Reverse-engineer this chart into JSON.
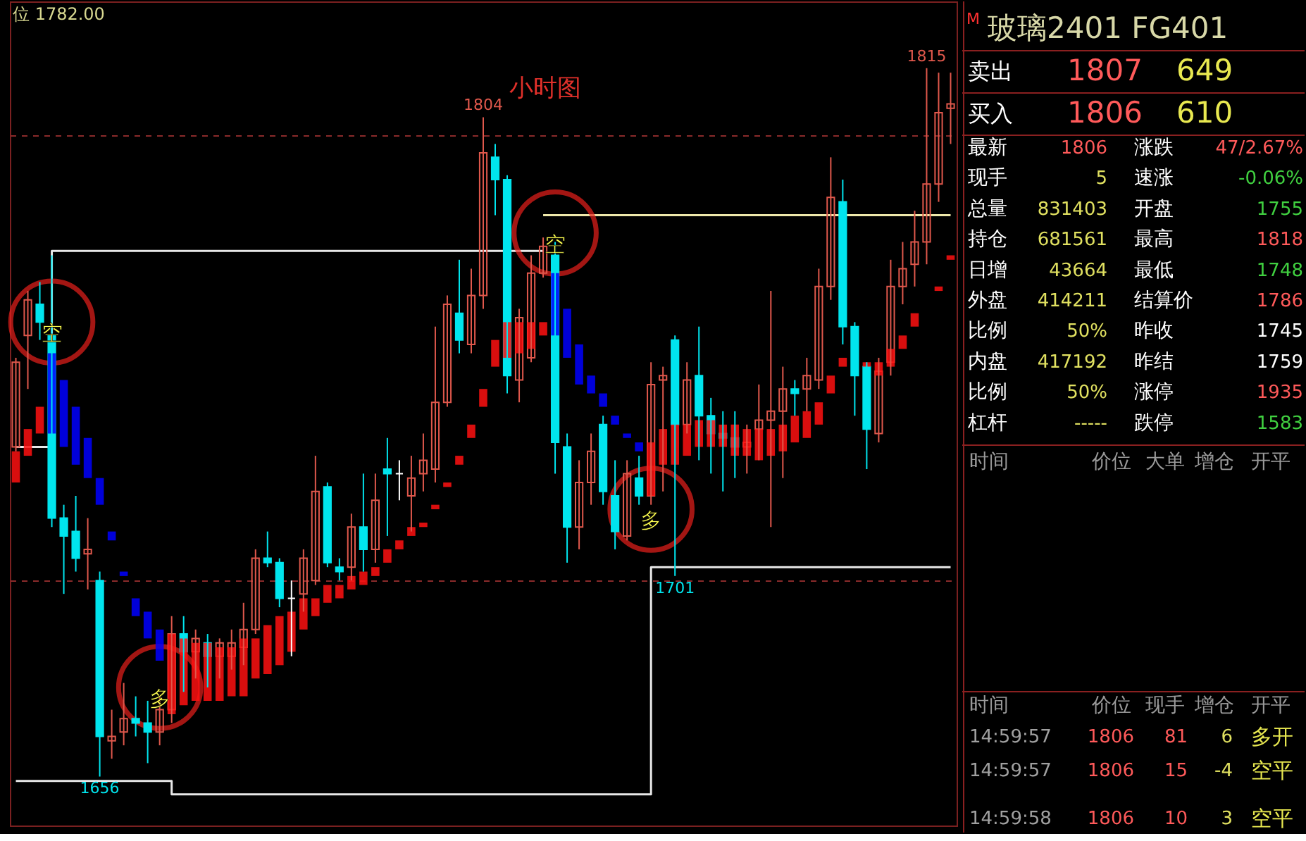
{
  "chart_data": [
    {
      "type": "candlestick",
      "title": "小时图",
      "categories": [
        null,
        null,
        null,
        null,
        null,
        null,
        null,
        null,
        null,
        null,
        null,
        null,
        null,
        null,
        null,
        null,
        null,
        null,
        null,
        null,
        null,
        null,
        null,
        null,
        null,
        null,
        null,
        null,
        null,
        null,
        null,
        null,
        null,
        null,
        null,
        null,
        null,
        null,
        null,
        null,
        null,
        null,
        null,
        null,
        null,
        null,
        null,
        null,
        null,
        null,
        null,
        null,
        null,
        null,
        null,
        null,
        null,
        null,
        null,
        null,
        null,
        null,
        null,
        null,
        null,
        null,
        null,
        null,
        null,
        null,
        null,
        null,
        null,
        null,
        null,
        null,
        null,
        null,
        null
      ],
      "ohlc": [
        [
          1730,
          1750,
          1729,
          1749
        ],
        [
          1755,
          1765,
          1743,
          1763
        ],
        [
          1762,
          1767,
          1754,
          1758
        ],
        [
          1755,
          1773,
          1712,
          1714
        ],
        [
          1714,
          1717,
          1697,
          1710
        ],
        [
          1711,
          1719,
          1702,
          1705
        ],
        [
          1706,
          1714,
          1698,
          1707
        ],
        [
          1700,
          1702,
          1656,
          1665
        ],
        [
          1664,
          1671,
          1660,
          1665
        ],
        [
          1666,
          1677,
          1663,
          1669
        ],
        [
          1669,
          1674,
          1665,
          1668
        ],
        [
          1668,
          1673,
          1659,
          1666
        ],
        [
          1666,
          1674,
          1663,
          1671
        ],
        [
          1671,
          1692,
          1668,
          1688
        ],
        [
          1688,
          1692,
          1675,
          1684
        ],
        [
          1684,
          1689,
          1678,
          1687
        ],
        [
          1686,
          1688,
          1676,
          1683
        ],
        [
          1683,
          1687,
          1678,
          1686
        ],
        [
          1683,
          1689,
          1680,
          1686
        ],
        [
          1685,
          1695,
          1681,
          1689
        ],
        [
          1689,
          1707,
          1688,
          1705
        ],
        [
          1705,
          1711,
          1703,
          1704
        ],
        [
          1704,
          1705,
          1694,
          1696
        ],
        [
          1696,
          1700,
          1683,
          1696
        ],
        [
          1697,
          1707,
          1693,
          1705
        ],
        [
          1700,
          1728,
          1699,
          1720
        ],
        [
          1721,
          1722,
          1703,
          1704
        ],
        [
          1703,
          1705,
          1700,
          1702
        ],
        [
          1703,
          1715,
          1700,
          1712
        ],
        [
          1712,
          1724,
          1702,
          1707
        ],
        [
          1707,
          1724,
          1704,
          1718
        ],
        [
          1725,
          1732,
          1710,
          1724
        ],
        [
          1724,
          1727,
          1718,
          1724
        ],
        [
          1719,
          1728,
          1711,
          1723
        ],
        [
          1724,
          1733,
          1720,
          1727
        ],
        [
          1725,
          1757,
          1722,
          1740
        ],
        [
          1740,
          1764,
          1739,
          1762
        ],
        [
          1760,
          1772,
          1751,
          1754
        ],
        [
          1753,
          1770,
          1751,
          1764
        ],
        [
          1764,
          1804,
          1761,
          1796
        ],
        [
          1795,
          1798,
          1782,
          1790
        ],
        [
          1790,
          1791,
          1742,
          1746
        ],
        [
          1745,
          1761,
          1740,
          1759
        ],
        [
          1750,
          1773,
          1749,
          1769
        ],
        [
          1769,
          1777,
          1768,
          1775
        ],
        [
          1773,
          1776,
          1724,
          1731
        ],
        [
          1730,
          1733,
          1704,
          1712
        ],
        [
          1712,
          1727,
          1707,
          1722
        ],
        [
          1722,
          1733,
          1717,
          1729
        ],
        [
          1735,
          1737,
          1717,
          1720
        ],
        [
          1719,
          1727,
          1707,
          1711
        ],
        [
          1710,
          1727,
          1709,
          1724
        ],
        [
          1723,
          1728,
          1717,
          1719
        ],
        [
          1719,
          1749,
          1717,
          1744
        ],
        [
          1745,
          1748,
          1720,
          1746
        ],
        [
          1754,
          1755,
          1701,
          1735
        ],
        [
          1735,
          1749,
          1733,
          1745
        ],
        [
          1746,
          1757,
          1727,
          1737
        ],
        [
          1737,
          1741,
          1724,
          1733
        ],
        [
          1733,
          1738,
          1720,
          1732
        ],
        [
          1732,
          1738,
          1723,
          1730
        ],
        [
          1730,
          1735,
          1724,
          1731
        ],
        [
          1734,
          1744,
          1727,
          1736
        ],
        [
          1736,
          1765,
          1712,
          1738
        ],
        [
          1738,
          1748,
          1723,
          1743
        ],
        [
          1743,
          1745,
          1737,
          1742
        ],
        [
          1743,
          1750,
          1738,
          1746
        ],
        [
          1745,
          1770,
          1743,
          1766
        ],
        [
          1766,
          1795,
          1763,
          1786
        ],
        [
          1785,
          1790,
          1753,
          1757
        ],
        [
          1757,
          1758,
          1737,
          1746
        ],
        [
          1748,
          1749,
          1725,
          1734
        ],
        [
          1733,
          1750,
          1731,
          1747
        ],
        [
          1749,
          1772,
          1746,
          1766
        ],
        [
          1766,
          1776,
          1762,
          1770
        ],
        [
          1771,
          1783,
          1766,
          1776
        ],
        [
          1776,
          1815,
          1771,
          1789
        ],
        [
          1789,
          1814,
          1785,
          1805
        ],
        [
          1806,
          1814,
          1798,
          1807
        ]
      ],
      "colors": [
        "#e0584c",
        "#e0584c",
        "#00e5ee",
        "#00e5ee",
        "#00e5ee",
        "#00e5ee",
        "#e0584c",
        "#00e5ee",
        "#e0584c",
        "#e0584c",
        "#00e5ee",
        "#00e5ee",
        "#e0584c",
        "#e0584c",
        "#00e5ee",
        "#e0584c",
        "#00e5ee",
        "#e0584c",
        "#e0584c",
        "#e0584c",
        "#e0584c",
        "#00e5ee",
        "#00e5ee",
        "#ffffff",
        "#e0584c",
        "#e0584c",
        "#00e5ee",
        "#00e5ee",
        "#e0584c",
        "#00e5ee",
        "#e0584c",
        "#00e5ee",
        "#ffffff",
        "#e0584c",
        "#e0584c",
        "#e0584c",
        "#e0584c",
        "#00e5ee",
        "#e0584c",
        "#e0584c",
        "#00e5ee",
        "#00e5ee",
        "#e0584c",
        "#e0584c",
        "#e0584c",
        "#00e5ee",
        "#00e5ee",
        "#e0584c",
        "#e0584c",
        "#00e5ee",
        "#00e5ee",
        "#e0584c",
        "#00e5ee",
        "#e0584c",
        "#e0584c",
        "#00e5ee",
        "#e0584c",
        "#00e5ee",
        "#00e5ee",
        "#00e5ee",
        "#00e5ee",
        "#e0584c",
        "#e0584c",
        "#e0584c",
        "#e0584c",
        "#00e5ee",
        "#e0584c",
        "#e0584c",
        "#e0584c",
        "#00e5ee",
        "#00e5ee",
        "#00e5ee",
        "#e0584c",
        "#e0584c",
        "#e0584c",
        "#e0584c",
        "#e0584c",
        "#e0584c",
        "#e0584c"
      ],
      "ylim": [
        1645,
        1830
      ],
      "yticks": [
        {
          "value": 1700,
          "label": null
        },
        {
          "value": 1800,
          "label": null
        }
      ],
      "grid": "y",
      "series": [
        {
          "type": "bar",
          "base": [
            1722,
            1728,
            1733,
            1733,
            1730,
            1726,
            1723,
            1717,
            1709,
            1701,
            1692,
            1687,
            1682,
            1670,
            1672,
            1673,
            1673,
            1673,
            1674,
            1674,
            1678,
            1679,
            1681,
            1684,
            1689,
            1692,
            1695,
            1696,
            1698,
            1699,
            1701,
            1704,
            1707,
            1710,
            1712,
            1716,
            1721,
            1726,
            1732,
            1739,
            1748,
            1750,
            1751,
            1752,
            1755,
            1755,
            1750,
            1744,
            1742,
            1739,
            1735,
            1732,
            1729,
            1719,
            1726,
            1726,
            1728,
            1730,
            1730,
            1730,
            1728,
            1728,
            1727,
            1728,
            1729,
            1731,
            1732,
            1735,
            1742,
            1748,
            null,
            1748,
            1746,
            1748,
            1752,
            1757,
            null,
            1765,
            1772
          ],
          "values": [
            7,
            6,
            6,
            18,
            15,
            13,
            9,
            6,
            2,
            1,
            4,
            6,
            7,
            18,
            15,
            13,
            13,
            12,
            11,
            13,
            9,
            11,
            11,
            9,
            7,
            4,
            4,
            3,
            3,
            3,
            2,
            3,
            2,
            2,
            1,
            1,
            1,
            2,
            3,
            4,
            6,
            8,
            7,
            6,
            3,
            14,
            11,
            9,
            4,
            3,
            2,
            1,
            2,
            12,
            8,
            9,
            7,
            6,
            6,
            5,
            7,
            6,
            7,
            6,
            6,
            6,
            6,
            5,
            4,
            2,
            null,
            1,
            3,
            4,
            3,
            3,
            null,
            1,
            1
          ],
          "colors": [
            "#ff1010",
            "#ff1010",
            "#ff1010",
            "#0000ff",
            "#0000ff",
            "#0000ff",
            "#0000ff",
            "#0000ff",
            "#0000ff",
            "#0000ff",
            "#0000ff",
            "#0000ff",
            "#0000ff",
            "#ff1010",
            "#ff1010",
            "#ff1010",
            "#ff1010",
            "#ff1010",
            "#ff1010",
            "#ff1010",
            "#ff1010",
            "#ff1010",
            "#ff1010",
            "#ff1010",
            "#ff1010",
            "#ff1010",
            "#ff1010",
            "#ff1010",
            "#ff1010",
            "#ff1010",
            "#ff1010",
            "#ff1010",
            "#ff1010",
            "#ff1010",
            "#ff1010",
            "#ff1010",
            "#ff1010",
            "#ff1010",
            "#ff1010",
            "#ff1010",
            "#ff1010",
            "#ff1010",
            "#ff1010",
            "#ff1010",
            "#ff1010",
            "#0000ff",
            "#0000ff",
            "#0000ff",
            "#0000ff",
            "#0000ff",
            "#0000ff",
            "#0000ff",
            "#0000ff",
            "#ff1010",
            "#ff1010",
            "#ff1010",
            "#ff1010",
            "#ff1010",
            "#ff1010",
            "#ff1010",
            "#ff1010",
            "#ff1010",
            "#ff1010",
            "#ff1010",
            "#ff1010",
            "#ff1010",
            "#ff1010",
            "#ff1010",
            "#ff1010",
            "#ff1010",
            "#ff1010",
            "#ff1010",
            "#ff1010",
            "#ff1010",
            "#ff1010",
            "#ff1010",
            "#ff1010",
            "#ff1010",
            "#ff1010"
          ]
        },
        {
          "type": "step",
          "color": "#e8e8e8",
          "values": [
            1730,
            1730,
            1730,
            1774,
            1774,
            1774,
            1774,
            1774,
            1774,
            1774,
            1774,
            1774,
            1774,
            1774,
            1774,
            1774,
            1774,
            1774,
            1774,
            1774,
            1774,
            1774,
            1774,
            1774,
            1774,
            1774,
            1774,
            1774,
            1774,
            1774,
            1774,
            1774,
            1774,
            1774,
            1774,
            1774,
            1774,
            1774,
            1774,
            1774,
            1774,
            1774,
            1774,
            1774,
            1774,
            null,
            null,
            null,
            null,
            null,
            null,
            null,
            null,
            null,
            null,
            null,
            null,
            null,
            null,
            null,
            null,
            null,
            null,
            null,
            null,
            null,
            null,
            null,
            null,
            null,
            null,
            null,
            null,
            null,
            null,
            null,
            null,
            null,
            null
          ]
        },
        {
          "type": "step",
          "color": "#eee8aa",
          "values": [
            null,
            null,
            null,
            null,
            null,
            null,
            null,
            null,
            null,
            null,
            null,
            null,
            null,
            null,
            null,
            null,
            null,
            null,
            null,
            null,
            null,
            null,
            null,
            null,
            null,
            null,
            null,
            null,
            null,
            null,
            null,
            null,
            null,
            null,
            null,
            null,
            null,
            null,
            null,
            null,
            null,
            null,
            null,
            null,
            1782,
            1782,
            1782,
            1782,
            1782,
            1782,
            1782,
            1782,
            1782,
            1782,
            1782,
            1782,
            1782,
            1782,
            1782,
            1782,
            1782,
            1782,
            1782,
            1782,
            1782,
            1782,
            1782,
            1782,
            1782,
            1782,
            1782,
            1782,
            1782,
            1782,
            1782,
            1782,
            1782,
            1782,
            1782
          ]
        },
        {
          "type": "step",
          "color": "#e8e8e8",
          "values": [
            1655,
            1655,
            1655,
            1655,
            1655,
            1655,
            1655,
            1655,
            1655,
            1655,
            1655,
            1655,
            1655,
            1652,
            1652,
            1652,
            1652,
            1652,
            1652,
            1652,
            1652,
            1652,
            1652,
            1652,
            1652,
            1652,
            1652,
            1652,
            1652,
            1652,
            1652,
            1652,
            1652,
            1652,
            1652,
            1652,
            1652,
            1652,
            1652,
            1652,
            1652,
            1652,
            1652,
            1652,
            1652,
            1652,
            1652,
            1652,
            1652,
            1652,
            1652,
            1652,
            1652,
            1703,
            1703,
            1703,
            1703,
            1703,
            1703,
            1703,
            1703,
            1703,
            1703,
            1703,
            1703,
            1703,
            1703,
            1703,
            1703,
            1703,
            1703,
            1703,
            1703,
            1703,
            1703,
            1703,
            1703,
            1703,
            1703
          ]
        },
        {
          "type": "scatter",
          "color": "#e8201c",
          "marker": "circle",
          "values": [
            null,
            null,
            null,
            1758,
            null,
            null,
            null,
            null,
            null,
            null,
            null,
            null,
            1676,
            null,
            null,
            null,
            null,
            null,
            null,
            null,
            null,
            null,
            null,
            null,
            null,
            null,
            null,
            null,
            null,
            null,
            null,
            null,
            null,
            null,
            null,
            null,
            null,
            null,
            null,
            null,
            null,
            null,
            null,
            null,
            null,
            1778,
            null,
            null,
            null,
            null,
            null,
            null,
            null,
            1716,
            null,
            null,
            null,
            null,
            null,
            null,
            null,
            null,
            null,
            null,
            null,
            null,
            null,
            null,
            null,
            null,
            null,
            null,
            null,
            null,
            null,
            null,
            null,
            null,
            null
          ],
          "value_labels": [
            null,
            null,
            null,
            "空",
            null,
            null,
            null,
            null,
            null,
            null,
            null,
            null,
            "多",
            null,
            null,
            null,
            null,
            null,
            null,
            null,
            null,
            null,
            null,
            null,
            null,
            null,
            null,
            null,
            null,
            null,
            null,
            null,
            null,
            null,
            null,
            null,
            null,
            null,
            null,
            null,
            null,
            null,
            null,
            null,
            null,
            "空",
            null,
            null,
            null,
            null,
            null,
            null,
            null,
            "多",
            null,
            null,
            null,
            null,
            null,
            null,
            null,
            null,
            null,
            null,
            null,
            null,
            null,
            null,
            null,
            null,
            null,
            null,
            null,
            null,
            null,
            null,
            null,
            null,
            null
          ]
        }
      ],
      "annotations": [
        "位 1782.00",
        {
          "text": "1815",
          "y": 1815
        },
        {
          "text": "1804",
          "y": 1804
        },
        {
          "text": "1701",
          "y": 1701
        },
        {
          "text": "1656",
          "y": 1656
        }
      ]
    },
    {
      "type": "other",
      "title": "玻璃2401  FG401",
      "annotations": [
        "M",
        "卖出",
        "1807",
        "649",
        "买入",
        "1806",
        "610",
        "最新",
        "1806",
        "涨跌",
        "47/2.67%",
        "现手",
        "5",
        "速涨",
        "-0.06%",
        "总量",
        "831403",
        "开盘",
        "1755",
        "持仓",
        "681561",
        "最高",
        "1818",
        "日增",
        "43664",
        "最低",
        "1748",
        "外盘",
        "414211",
        "结算价",
        "1786",
        "比例",
        "50%",
        "昨收",
        "1745",
        "内盘",
        "417192",
        "昨结",
        "1759",
        "比例",
        "50%",
        "涨停",
        "1935",
        "杠杆",
        "-----",
        "跌停",
        "1583",
        "时间",
        "价位",
        "大单",
        "增仓",
        "开平",
        "时间",
        "价位",
        "现手",
        "增仓",
        "开平",
        "14:59:57",
        "1806",
        "81",
        "6",
        "多开",
        "14:59:57",
        "1806",
        "15",
        "-4",
        "空平",
        "14:59:58",
        "1806",
        "10",
        "3",
        "空平"
      ]
    }
  ]
}
